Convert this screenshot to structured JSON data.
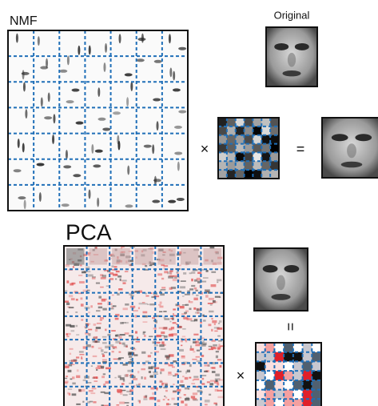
{
  "nmf": {
    "label": "NMF",
    "original_label": "Original",
    "times": "×",
    "equals": "="
  },
  "pca": {
    "label": "PCA",
    "times": "×",
    "equals": "="
  }
}
